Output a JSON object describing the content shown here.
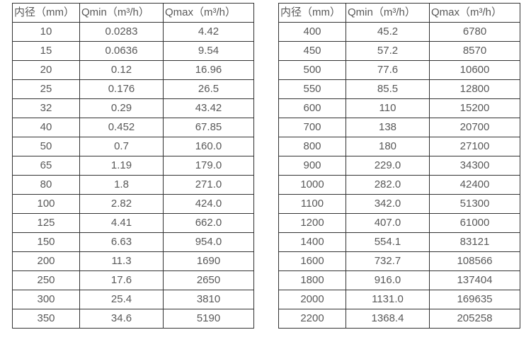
{
  "colors": {
    "border": "#333333",
    "text": "#595959",
    "background": "#ffffff"
  },
  "tables": [
    {
      "columns": [
        "内径（mm）",
        "Qmin（m³/h）",
        "Qmax（m³/h）"
      ],
      "rows": [
        [
          "10",
          "0.0283",
          "4.42"
        ],
        [
          "15",
          "0.0636",
          "9.54"
        ],
        [
          "20",
          "0.12",
          "16.96"
        ],
        [
          "25",
          "0.176",
          "26.5"
        ],
        [
          "32",
          "0.29",
          "43.42"
        ],
        [
          "40",
          "0.452",
          "67.85"
        ],
        [
          "50",
          "0.7",
          "160.0"
        ],
        [
          "65",
          "1.19",
          "179.0"
        ],
        [
          "80",
          "1.8",
          "271.0"
        ],
        [
          "100",
          "2.82",
          "424.0"
        ],
        [
          "125",
          "4.41",
          "662.0"
        ],
        [
          "150",
          "6.63",
          "954.0"
        ],
        [
          "200",
          "11.3",
          "1690"
        ],
        [
          "250",
          "17.6",
          "2650"
        ],
        [
          "300",
          "25.4",
          "3810"
        ],
        [
          "350",
          "34.6",
          "5190"
        ]
      ]
    },
    {
      "columns": [
        "内径（mm）",
        "Qmin（m³/h）",
        "Qmax（m³/h）"
      ],
      "rows": [
        [
          "400",
          "45.2",
          "6780"
        ],
        [
          "450",
          "57.2",
          "8570"
        ],
        [
          "500",
          "77.6",
          "10600"
        ],
        [
          "550",
          "85.5",
          "12800"
        ],
        [
          "600",
          "110",
          "15200"
        ],
        [
          "700",
          "138",
          "20700"
        ],
        [
          "800",
          "180",
          "27100"
        ],
        [
          "900",
          "229.0",
          "34300"
        ],
        [
          "1000",
          "282.0",
          "42400"
        ],
        [
          "1100",
          "342.0",
          "51300"
        ],
        [
          "1200",
          "407.0",
          "61000"
        ],
        [
          "1400",
          "554.1",
          "83121"
        ],
        [
          "1600",
          "732.7",
          "108566"
        ],
        [
          "1800",
          "916.0",
          "137404"
        ],
        [
          "2000",
          "1131.0",
          "169635"
        ],
        [
          "2200",
          "1368.4",
          "205258"
        ]
      ]
    }
  ]
}
